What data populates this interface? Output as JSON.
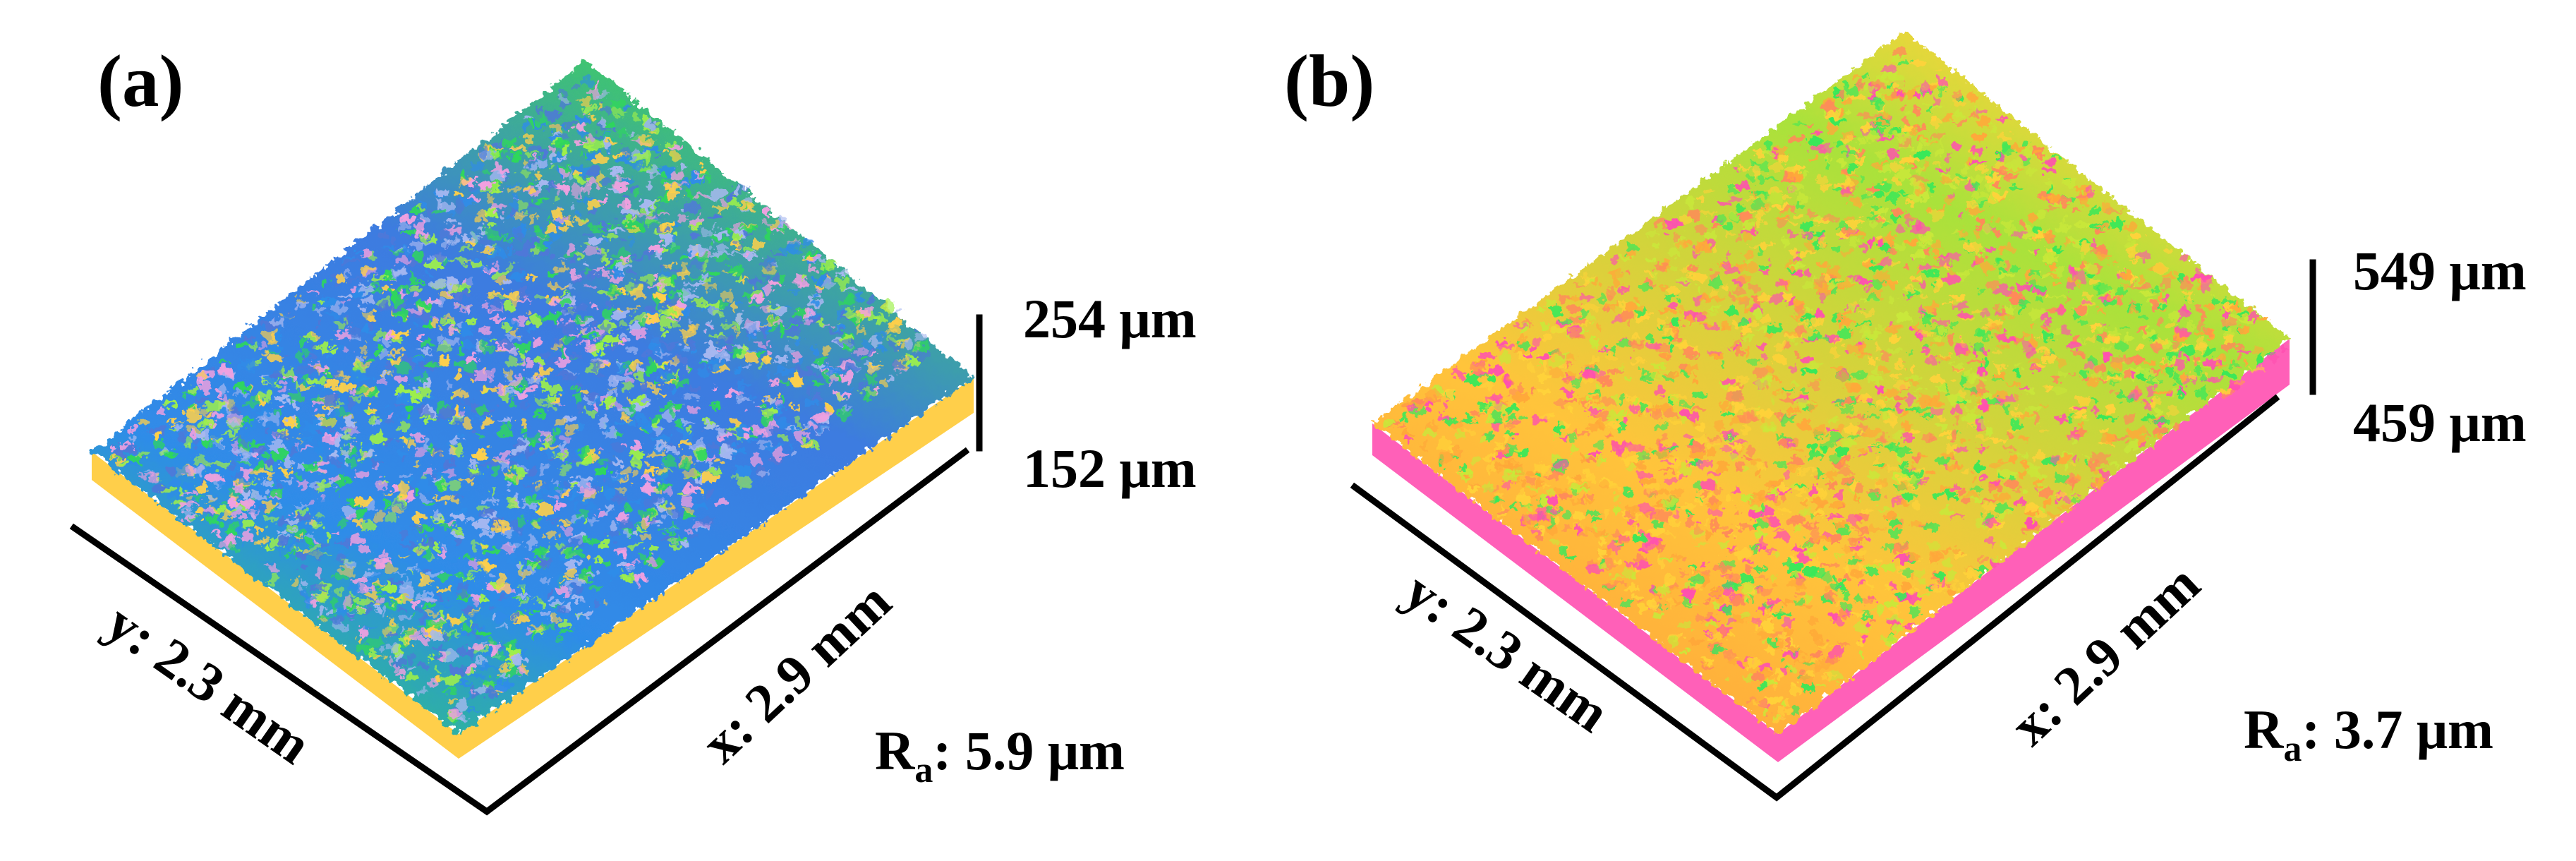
{
  "panels": [
    {
      "label": "(a)",
      "z_max": "254 μm",
      "z_min": "152 μm",
      "y_axis": "y: 2.3 mm",
      "x_axis": "x: 2.9 mm",
      "ra_prefix": "R",
      "ra_sub": "a",
      "ra_value": ":  5.9 μm",
      "palette": [
        "#f0a0e0",
        "#ffd04a",
        "#9ef04a",
        "#2fd85a",
        "#2f8ce8",
        "#4f78d8",
        "#a8b8f0"
      ]
    },
    {
      "label": "(b)",
      "z_max": "549 μm",
      "z_min": "459 μm",
      "y_axis": "y: 2.3 mm",
      "x_axis": "x: 2.9 mm",
      "ra_prefix": "R",
      "ra_sub": "a",
      "ra_value": ":  3.7 μm",
      "palette": [
        "#ff50b0",
        "#ff8a5a",
        "#ffa83a",
        "#ffd23a",
        "#c9e83a",
        "#39e85a"
      ]
    }
  ]
}
